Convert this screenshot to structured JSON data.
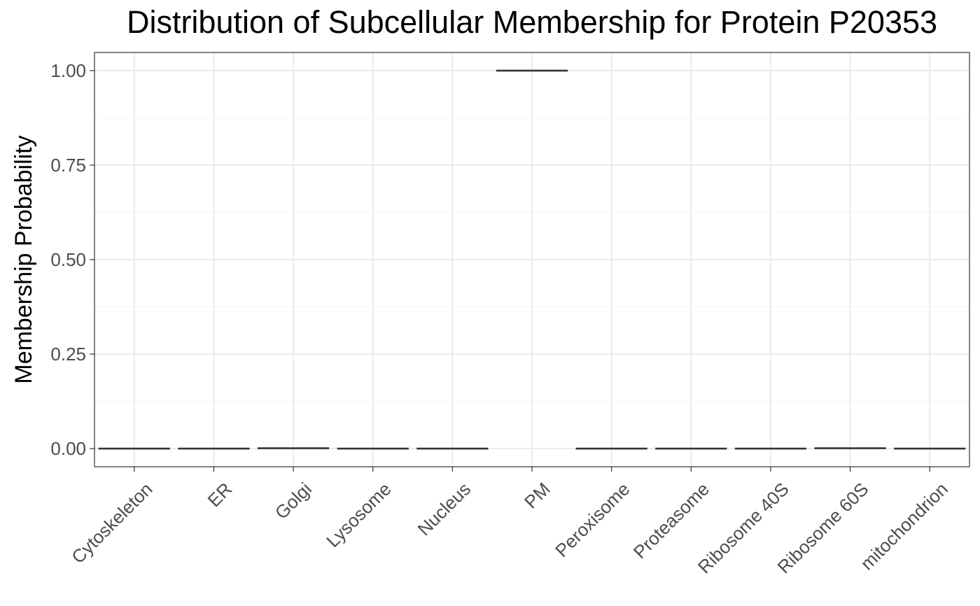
{
  "chart_data": {
    "type": "boxplot",
    "title": "Distribution of Subcellular Membership for Protein P20353",
    "xlabel": "",
    "ylabel": "Membership Probability",
    "ylim": [
      -0.048,
      1.048
    ],
    "yticks": [
      0.0,
      0.25,
      0.5,
      0.75,
      1.0
    ],
    "ytick_labels": [
      "0.00",
      "0.25",
      "0.50",
      "0.75",
      "1.00"
    ],
    "grid": true,
    "legend": "none",
    "categories": [
      "Cytoskeleton",
      "ER",
      "Golgi",
      "Lysosome",
      "Nucleus",
      "PM",
      "Peroxisome",
      "Proteasome",
      "Ribosome 40S",
      "Ribosome 60S",
      "mitochondrion"
    ],
    "values": [
      0.0,
      0.0,
      0.001,
      0.0,
      0.0,
      1.0,
      0.0,
      0.0,
      0.0,
      0.001,
      0.0
    ],
    "colors": {
      "box": "#333333",
      "panel_border": "#333333",
      "grid_major": "#ebebeb",
      "grid_minor": "#f5f5f5",
      "tick_label": "#4d4d4d"
    }
  }
}
